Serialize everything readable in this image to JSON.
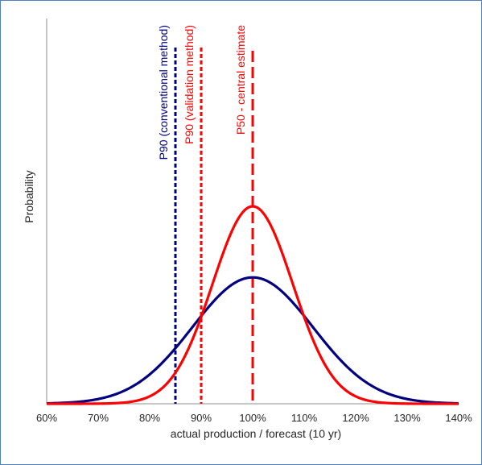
{
  "chart_data": {
    "type": "line",
    "xlabel": "actual production / forecast (10 yr)",
    "ylabel": "Probability",
    "xlim": [
      0.6,
      1.4
    ],
    "x_ticks": [
      "60%",
      "70%",
      "80%",
      "90%",
      "100%",
      "110%",
      "120%",
      "130%",
      "140%"
    ],
    "y_ticks_shown": false,
    "grid": false,
    "series": [
      {
        "kind": "normal-curve",
        "mean": 1.0,
        "std": 0.117,
        "peak_relative": 0.64,
        "color": "#000080"
      },
      {
        "kind": "normal-curve",
        "mean": 1.0,
        "std": 0.078,
        "peak_relative": 1.0,
        "color": "#ff0000"
      }
    ],
    "vertical_lines": [
      {
        "x": 0.85,
        "label": "P90 (conventional method)",
        "color": "#000080",
        "dash": "short"
      },
      {
        "x": 0.9,
        "label": "P90 (validation method)",
        "color": "#ff0000",
        "dash": "short"
      },
      {
        "x": 1.0,
        "label": "P50 - central estimate",
        "color": "#ff0000",
        "dash": "long"
      }
    ]
  }
}
